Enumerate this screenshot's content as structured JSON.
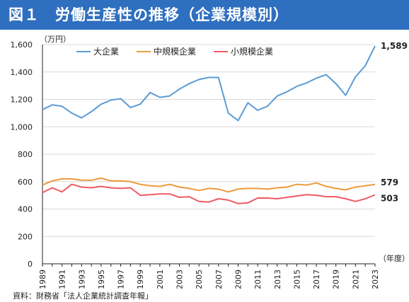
{
  "title": "図１　労働生産性の推移（企業規模別）",
  "source": "資料：財務省「法人企業統計調査年報」",
  "colors": {
    "title_bg": "#2f6fbf",
    "axis": "#222222"
  },
  "chart_data": {
    "type": "line",
    "y_unit": "（万円）",
    "x_unit": "（年度）",
    "ylim": [
      0,
      1600
    ],
    "y_ticks": [
      0,
      200,
      400,
      600,
      800,
      1000,
      1200,
      1400,
      1600
    ],
    "y_tick_labels": [
      "0",
      "200",
      "400",
      "600",
      "800",
      "1,000",
      "1,200",
      "1,400",
      "1,600"
    ],
    "x_tick_labels": [
      "1989",
      "1991",
      "1993",
      "1995",
      "1997",
      "1999",
      "2001",
      "2003",
      "2005",
      "2007",
      "2009",
      "2011",
      "2013",
      "2015",
      "2017",
      "2019",
      "2021",
      "2023"
    ],
    "x": [
      1989,
      1990,
      1991,
      1992,
      1993,
      1994,
      1995,
      1996,
      1997,
      1998,
      1999,
      2000,
      2001,
      2002,
      2003,
      2004,
      2005,
      2006,
      2007,
      2008,
      2009,
      2010,
      2011,
      2012,
      2013,
      2014,
      2015,
      2016,
      2017,
      2018,
      2019,
      2020,
      2021,
      2022,
      2023
    ],
    "grid": true,
    "legend_position": "top",
    "series": [
      {
        "name": "大企業",
        "color": "#5b9bd5",
        "values": [
          1125,
          1160,
          1150,
          1100,
          1065,
          1110,
          1165,
          1195,
          1205,
          1140,
          1165,
          1250,
          1215,
          1225,
          1275,
          1315,
          1345,
          1360,
          1360,
          1100,
          1045,
          1175,
          1120,
          1150,
          1225,
          1255,
          1295,
          1320,
          1355,
          1380,
          1315,
          1230,
          1365,
          1445,
          1589
        ],
        "end_label": "1,589"
      },
      {
        "name": "中規模企業",
        "color": "#ed9a3a",
        "values": [
          575,
          605,
          620,
          620,
          610,
          610,
          625,
          605,
          605,
          600,
          580,
          570,
          565,
          580,
          560,
          550,
          535,
          550,
          545,
          525,
          545,
          550,
          550,
          545,
          555,
          560,
          580,
          575,
          590,
          565,
          550,
          540,
          560,
          570,
          579
        ],
        "end_label": "579"
      },
      {
        "name": "小規模企業",
        "color": "#ef5b63",
        "values": [
          520,
          555,
          525,
          580,
          560,
          555,
          565,
          555,
          550,
          555,
          500,
          505,
          510,
          510,
          485,
          490,
          455,
          450,
          475,
          465,
          440,
          445,
          480,
          480,
          475,
          485,
          495,
          505,
          500,
          490,
          490,
          475,
          455,
          475,
          503
        ],
        "end_label": "503"
      }
    ]
  }
}
